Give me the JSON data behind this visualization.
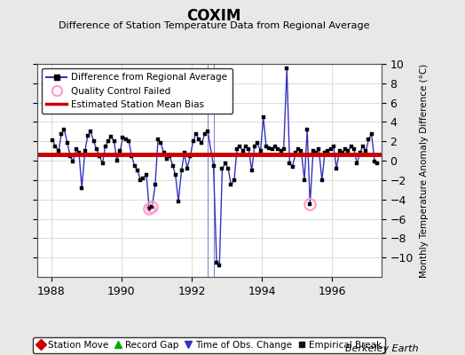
{
  "title": "COXIM",
  "subtitle": "Difference of Station Temperature Data from Regional Average",
  "ylabel": "Monthly Temperature Anomaly Difference (°C)",
  "credit": "Berkeley Earth",
  "ylim": [
    -12,
    10
  ],
  "xlim": [
    1987.6,
    1997.4
  ],
  "xticks": [
    1988,
    1990,
    1992,
    1994,
    1996
  ],
  "yticks": [
    -10,
    -8,
    -6,
    -4,
    -2,
    0,
    2,
    4,
    6,
    8,
    10
  ],
  "bias_value": 0.65,
  "bg_color": "#e8e8e8",
  "plot_bg_color": "#ffffff",
  "line_color": "#3333bb",
  "bias_color": "#cc0000",
  "qc_color": "#ff99cc",
  "times": [
    1988.04,
    1988.12,
    1988.21,
    1988.29,
    1988.37,
    1988.46,
    1988.54,
    1988.62,
    1988.71,
    1988.79,
    1988.87,
    1988.96,
    1989.04,
    1989.12,
    1989.21,
    1989.29,
    1989.37,
    1989.46,
    1989.54,
    1989.62,
    1989.71,
    1989.79,
    1989.87,
    1989.96,
    1990.04,
    1990.12,
    1990.21,
    1990.29,
    1990.37,
    1990.46,
    1990.54,
    1990.62,
    1990.71,
    1990.79,
    1990.87,
    1990.96,
    1991.04,
    1991.12,
    1991.21,
    1991.29,
    1991.37,
    1991.46,
    1991.54,
    1991.62,
    1991.71,
    1991.79,
    1991.87,
    1991.96,
    1992.04,
    1992.12,
    1992.21,
    1992.29,
    1992.37,
    1992.46,
    1992.62,
    1992.71,
    1992.79,
    1992.87,
    1992.96,
    1993.04,
    1993.12,
    1993.21,
    1993.29,
    1993.37,
    1993.46,
    1993.54,
    1993.62,
    1993.71,
    1993.79,
    1993.87,
    1993.96,
    1994.04,
    1994.12,
    1994.21,
    1994.29,
    1994.37,
    1994.46,
    1994.54,
    1994.62,
    1994.71,
    1994.79,
    1994.87,
    1994.96,
    1995.04,
    1995.12,
    1995.21,
    1995.29,
    1995.37,
    1995.46,
    1995.54,
    1995.62,
    1995.71,
    1995.79,
    1995.87,
    1995.96,
    1996.04,
    1996.12,
    1996.21,
    1996.29,
    1996.37,
    1996.46,
    1996.54,
    1996.62,
    1996.71,
    1996.79,
    1996.87,
    1996.96,
    1997.04,
    1997.12,
    1997.21,
    1997.29
  ],
  "values": [
    2.1,
    1.5,
    1.0,
    2.8,
    3.2,
    1.8,
    0.5,
    -0.1,
    1.2,
    0.8,
    -2.8,
    1.0,
    2.6,
    3.0,
    2.0,
    1.2,
    0.5,
    -0.3,
    1.5,
    2.0,
    2.5,
    2.0,
    0.0,
    1.0,
    2.4,
    2.2,
    2.0,
    0.5,
    -0.5,
    -1.0,
    -2.0,
    -1.8,
    -1.5,
    -4.9,
    -4.8,
    -2.5,
    2.2,
    1.8,
    0.8,
    0.2,
    0.5,
    -0.5,
    -1.5,
    -4.2,
    -1.0,
    0.8,
    -0.8,
    0.5,
    2.0,
    2.8,
    2.2,
    1.8,
    2.8,
    3.0,
    -0.5,
    -10.5,
    -10.8,
    -0.8,
    -0.3,
    -0.8,
    -2.5,
    -2.0,
    1.2,
    1.5,
    1.0,
    1.5,
    1.2,
    -1.0,
    1.5,
    1.8,
    1.0,
    4.5,
    1.5,
    1.3,
    1.2,
    1.5,
    1.2,
    1.0,
    1.2,
    9.5,
    -0.3,
    -0.6,
    0.8,
    1.2,
    1.0,
    -2.0,
    3.2,
    -4.5,
    1.0,
    0.8,
    1.2,
    -2.0,
    0.8,
    1.0,
    1.2,
    1.5,
    -0.8,
    1.0,
    0.8,
    1.2,
    1.0,
    1.5,
    1.2,
    -0.3,
    0.8,
    1.5,
    1.0,
    2.2,
    2.8,
    -0.1,
    -0.3
  ],
  "qc_failed_times": [
    1990.79,
    1990.87,
    1995.37
  ],
  "qc_failed_values": [
    -4.9,
    -4.8,
    -4.5
  ],
  "tobs_times": [
    1992.46,
    1992.62
  ],
  "legend1_items": [
    {
      "label": "Difference from Regional Average",
      "color": "#3333bb",
      "lw": 1.5,
      "marker": "o",
      "ms": 4
    },
    {
      "label": "Quality Control Failed",
      "color": "#ff99cc",
      "marker": "o",
      "ms": 8
    },
    {
      "label": "Estimated Station Mean Bias",
      "color": "#cc0000",
      "lw": 2.5
    }
  ],
  "legend2_items": [
    {
      "label": "Station Move",
      "color": "#cc0000",
      "marker": "D",
      "ms": 6
    },
    {
      "label": "Record Gap",
      "color": "#00aa00",
      "marker": "^",
      "ms": 6
    },
    {
      "label": "Time of Obs. Change",
      "color": "#3333bb",
      "marker": "v",
      "ms": 6
    },
    {
      "label": "Empirical Break",
      "color": "#111111",
      "marker": "s",
      "ms": 5
    }
  ]
}
